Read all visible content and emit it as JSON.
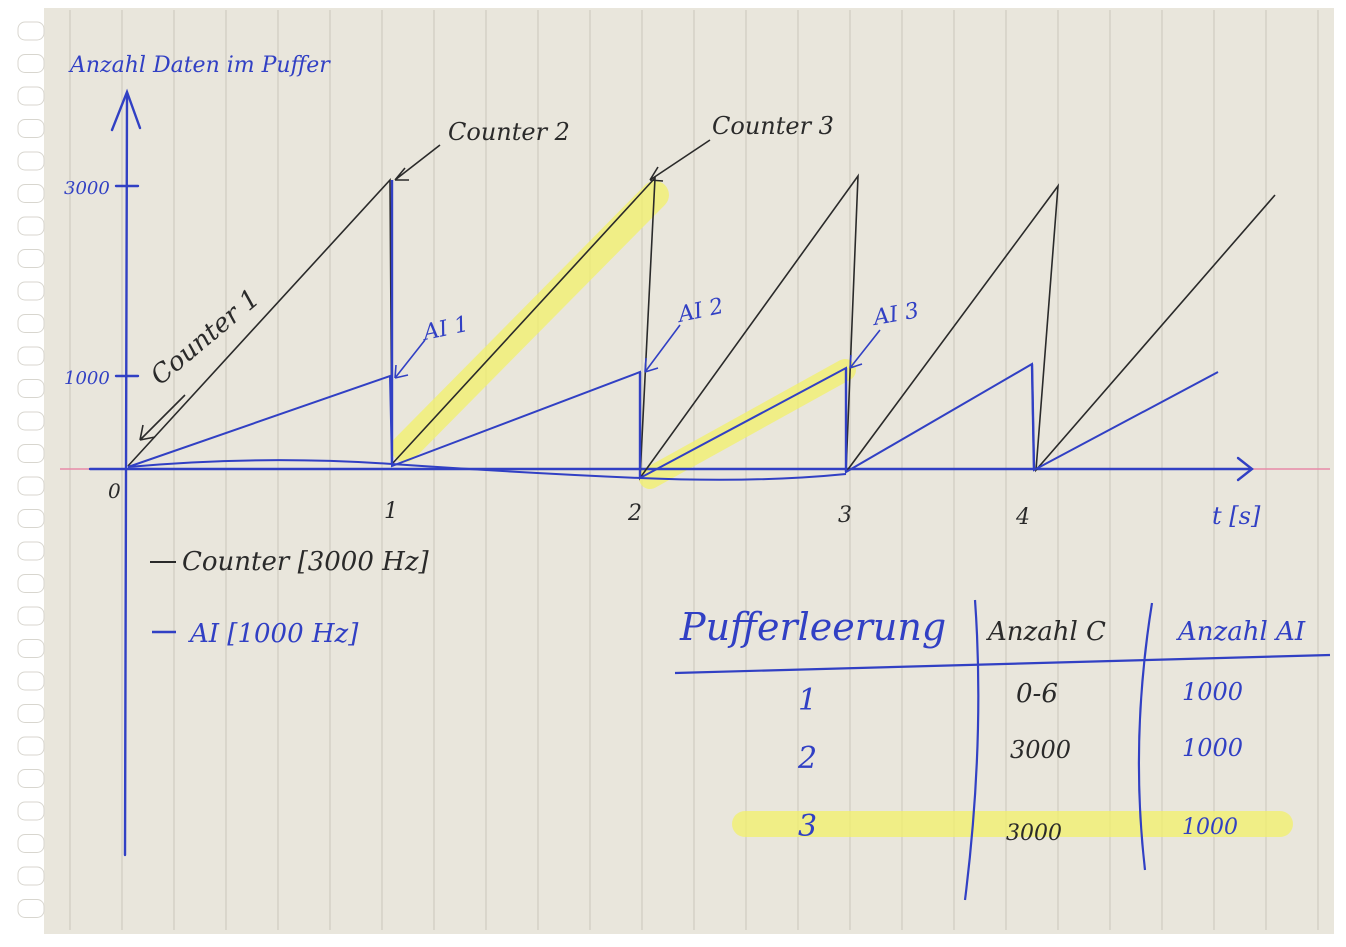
{
  "axes": {
    "y_label": "Anzahl Daten im Puffer",
    "y_ticks": [
      "3000",
      "1000"
    ],
    "origin": "0",
    "x_ticks": [
      "1",
      "2",
      "3",
      "4"
    ],
    "x_label": "t [s]"
  },
  "annotations": {
    "counter1": "Counter 1",
    "counter2": "Counter 2",
    "counter3": "Counter 3",
    "ai1": "AI 1",
    "ai2": "AI 2",
    "ai3": "AI 3"
  },
  "legend": {
    "counter": "Counter [3000 Hz]",
    "ai": "AI [1000 Hz]"
  },
  "table": {
    "headers": [
      "Pufferleerung",
      "Anzahl C",
      "Anzahl AI"
    ],
    "rows": [
      [
        "1",
        "0-6",
        "1000"
      ],
      [
        "2",
        "3000",
        "1000"
      ],
      [
        "3",
        "3000",
        "1000"
      ]
    ]
  },
  "colors": {
    "paper": "#e9e6dc",
    "ink_blue": "#3140c4",
    "ink_black": "#2a2a2a",
    "highlighter": "#f1f06a",
    "pink_line": "#e78aa8"
  }
}
